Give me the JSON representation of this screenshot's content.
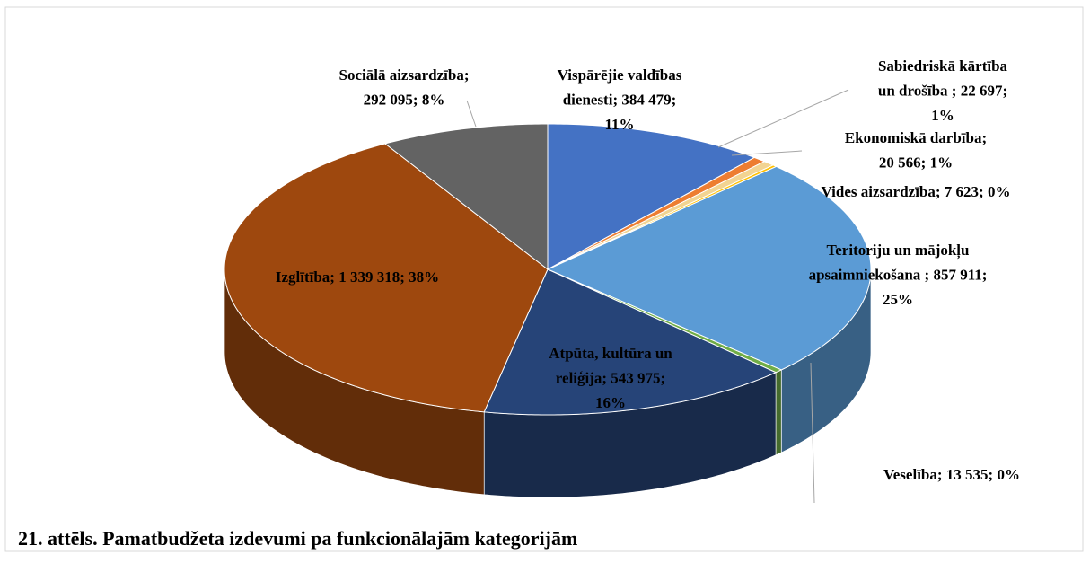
{
  "chart_data": {
    "type": "pie",
    "style": "3d",
    "title": "21. attēls. Pamatbudžeta izdevumi pa funkcionālajām kategorijām",
    "values": [
      384479,
      22697,
      20566,
      7623,
      857911,
      13535,
      543975,
      1339318,
      292095
    ],
    "value_labels": [
      [
        "Vispārējie valdības",
        "dienesti; 384 479;",
        "11%"
      ],
      [
        "Sabiedriskā kārtība",
        "un drošība ; 22 697;",
        "1%"
      ],
      [
        "Ekonomiskā darbība;",
        "20 566; 1%"
      ],
      [
        "Vides aizsardzība; 7 623; 0%"
      ],
      [
        "Teritoriju un mājokļu",
        "apsaimniekošana ; 857 911;",
        "25%"
      ],
      [
        "Veselība; 13 535; 0%"
      ],
      [
        "Atpūta, kultūra un",
        "reliģija; 543 975;",
        "16%"
      ],
      [
        "Izglītība; 1 339 318; 38%"
      ],
      [
        "Sociālā aizsardzība;",
        "292 095; 8%"
      ]
    ],
    "colors": [
      "#4472c4",
      "#ed7d31",
      "#f2d492",
      "#ffc000",
      "#5b9bd5",
      "#70ad47",
      "#264478",
      "#9e480e",
      "#636363"
    ]
  }
}
